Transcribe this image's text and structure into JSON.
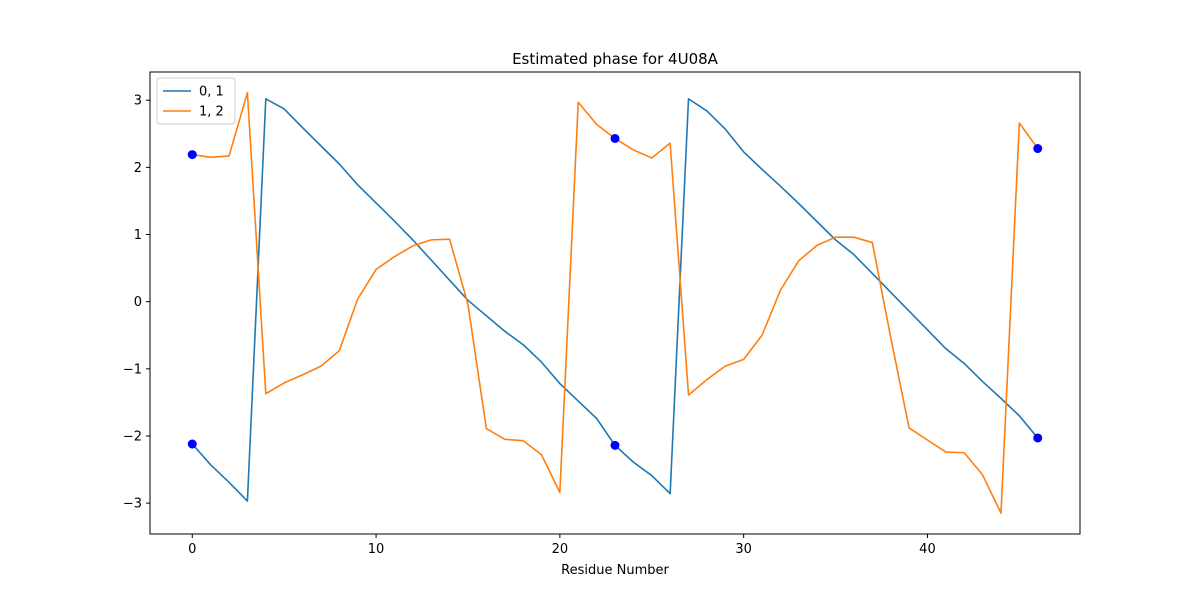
{
  "chart_data": {
    "type": "line",
    "title": "Estimated phase for 4U08A",
    "xlabel": "Residue Number",
    "ylabel": "",
    "xlim": [
      -2.3,
      48.3
    ],
    "ylim": [
      -3.46,
      3.42
    ],
    "xticks": [
      0,
      10,
      20,
      30,
      40
    ],
    "yticks": [
      -3,
      -2,
      -1,
      0,
      1,
      2,
      3
    ],
    "xtick_labels": [
      "0",
      "10",
      "20",
      "30",
      "40"
    ],
    "ytick_labels": [
      "−3",
      "−2",
      "−1",
      "0",
      "1",
      "2",
      "3"
    ],
    "grid": false,
    "legend": "upper-left",
    "series": [
      {
        "name": "0, 1",
        "color": "#1f77b4",
        "x": [
          0,
          1,
          2,
          3,
          4,
          5,
          6,
          7,
          8,
          9,
          10,
          11,
          12,
          13,
          14,
          15,
          16,
          17,
          18,
          19,
          20,
          21,
          22,
          23,
          24,
          25,
          26,
          27,
          28,
          29,
          30,
          31,
          32,
          33,
          34,
          35,
          36,
          37,
          38,
          39,
          40,
          41,
          42,
          43,
          44,
          45,
          46
        ],
        "y": [
          -2.12,
          -2.43,
          -2.69,
          -2.97,
          3.02,
          2.87,
          2.59,
          2.32,
          2.05,
          1.74,
          1.47,
          1.2,
          0.92,
          0.62,
          0.32,
          0.02,
          -0.21,
          -0.44,
          -0.64,
          -0.9,
          -1.22,
          -1.48,
          -1.74,
          -2.14,
          -2.39,
          -2.59,
          -2.86,
          3.02,
          2.84,
          2.57,
          2.23,
          1.97,
          1.72,
          1.46,
          1.19,
          0.92,
          0.7,
          0.42,
          0.14,
          -0.14,
          -0.42,
          -0.7,
          -0.92,
          -1.19,
          -1.44,
          -1.7,
          -2.03
        ]
      },
      {
        "name": "1, 2",
        "color": "#ff7f0e",
        "x": [
          0,
          1,
          2,
          3,
          4,
          5,
          6,
          7,
          8,
          9,
          10,
          11,
          12,
          13,
          14,
          15,
          16,
          17,
          18,
          19,
          20,
          21,
          22,
          23,
          24,
          25,
          26,
          27,
          28,
          29,
          30,
          31,
          32,
          33,
          34,
          35,
          36,
          37,
          38,
          39,
          40,
          41,
          42,
          43,
          44,
          45,
          46
        ],
        "y": [
          2.19,
          2.15,
          2.17,
          3.11,
          -1.37,
          -1.21,
          -1.09,
          -0.96,
          -0.73,
          0.04,
          0.48,
          0.67,
          0.83,
          0.92,
          0.93,
          -0.04,
          -1.89,
          -2.05,
          -2.07,
          -2.28,
          -2.84,
          2.97,
          2.64,
          2.43,
          2.26,
          2.14,
          2.36,
          -1.39,
          -1.16,
          -0.96,
          -0.86,
          -0.5,
          0.17,
          0.61,
          0.84,
          0.96,
          0.96,
          0.88,
          -0.53,
          -1.88,
          -2.06,
          -2.24,
          -2.25,
          -2.58,
          -3.15,
          2.66,
          2.28
        ]
      }
    ],
    "markers": {
      "color": "#0000ff",
      "points": [
        {
          "x": 0,
          "y": -2.12
        },
        {
          "x": 0,
          "y": 2.19
        },
        {
          "x": 23,
          "y": -2.14
        },
        {
          "x": 23,
          "y": 2.43
        },
        {
          "x": 46,
          "y": -2.03
        },
        {
          "x": 46,
          "y": 2.28
        }
      ]
    }
  }
}
